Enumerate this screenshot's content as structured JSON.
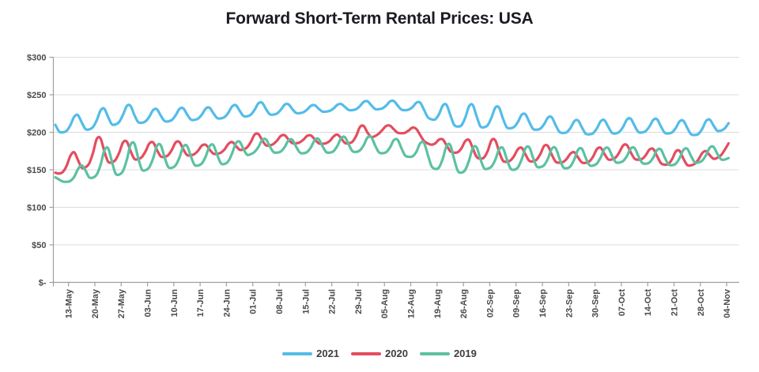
{
  "chart_data": {
    "type": "line",
    "title": "Forward Short-Term Rental Prices: USA",
    "y_axis": {
      "min": 0,
      "max": 300,
      "step": 50,
      "tick_labels": [
        "$300",
        "$250",
        "$200",
        "$150",
        "$100",
        "$50",
        "$-"
      ]
    },
    "x_axis": {
      "tick_labels": [
        "13-May",
        "20-May",
        "27-May",
        "03-Jun",
        "10-Jun",
        "17-Jun",
        "24-Jun",
        "01-Jul",
        "08-Jul",
        "15-Jul",
        "22-Jul",
        "29-Jul",
        "05-Aug",
        "12-Aug",
        "19-Aug",
        "26-Aug",
        "02-Sep",
        "09-Sep",
        "16-Sep",
        "23-Sep",
        "30-Sep",
        "07-Oct",
        "14-Oct",
        "21-Oct",
        "28-Oct",
        "04-Nov"
      ]
    },
    "grid": true,
    "legend_position": "bottom",
    "days_per_category": 7,
    "num_days": 180,
    "week_shape": [
      0.05,
      0,
      0.1,
      0.45,
      0.95,
      1,
      0.5
    ],
    "series": [
      {
        "name": "2021",
        "color": "#53BCE9",
        "phase": 6,
        "weekly_low": [
          200,
          205,
          212,
          213,
          215,
          217,
          219,
          222,
          224,
          226,
          228,
          230,
          231,
          229,
          214,
          206,
          207,
          205,
          203,
          198,
          197,
          199,
          200,
          198,
          196,
          204
        ],
        "weekly_high": [
          220,
          228,
          238,
          230,
          232,
          232,
          234,
          240,
          238,
          236,
          236,
          241,
          242,
          241,
          237,
          236,
          237,
          225,
          222,
          216,
          215,
          218,
          218,
          216,
          214,
          222
        ]
      },
      {
        "name": "2020",
        "color": "#E44D5F",
        "phase": 0,
        "weekly_low": [
          145,
          158,
          161,
          166,
          168,
          170,
          172,
          180,
          184,
          186,
          184,
          186,
          200,
          198,
          178,
          170,
          162,
          160,
          162,
          158,
          160,
          166,
          162,
          154,
          157,
          171
        ],
        "weekly_high": [
          168,
          193,
          188,
          186,
          188,
          183,
          184,
          198,
          196,
          196,
          194,
          208,
          209,
          208,
          191,
          189,
          192,
          178,
          184,
          172,
          178,
          184,
          178,
          176,
          172,
          186
        ]
      },
      {
        "name": "2019",
        "color": "#5CC1A1",
        "phase": 5,
        "weekly_low": [
          134,
          140,
          144,
          150,
          153,
          156,
          158,
          172,
          173,
          172,
          173,
          174,
          172,
          167,
          150,
          146,
          152,
          150,
          154,
          152,
          156,
          160,
          158,
          156,
          160,
          164
        ],
        "weekly_high": [
          140,
          172,
          186,
          184,
          182,
          182,
          184,
          191,
          190,
          190,
          192,
          195,
          192,
          188,
          184,
          182,
          178,
          180,
          180,
          178,
          178,
          180,
          178,
          176,
          180,
          181
        ]
      }
    ],
    "style": {
      "grid_color": "#dcdcdc",
      "axis_color": "#9e9e9e",
      "tick_text_color": "#4a4a4a",
      "title_color": "#1b1b23"
    }
  }
}
